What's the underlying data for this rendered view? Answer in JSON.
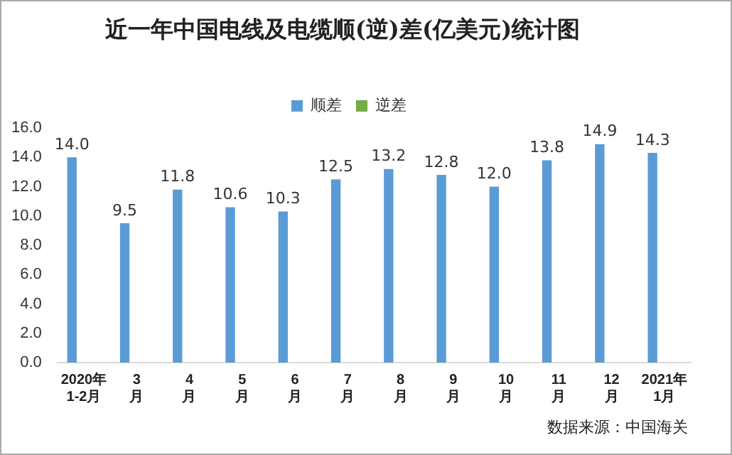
{
  "chart_data": {
    "type": "bar",
    "title": "近一年中国电线及电缆顺(逆)差(亿美元)统计图",
    "categories": [
      "2020年\n1-2月",
      "3\n月",
      "4\n月",
      "5\n月",
      "6\n月",
      "7\n月",
      "8\n月",
      "9\n月",
      "10\n月",
      "11\n月",
      "12\n月",
      "2021年\n1月"
    ],
    "series": [
      {
        "name": "顺差",
        "color": "#5b9bd5",
        "values": [
          14.0,
          9.5,
          11.8,
          10.6,
          10.3,
          12.5,
          13.2,
          12.8,
          12.0,
          13.8,
          14.9,
          14.3
        ],
        "value_labels": [
          "14.0",
          "9.5",
          "11.8",
          "10.6",
          "10.3",
          "12.5",
          "13.2",
          "12.8",
          "12.0",
          "13.8",
          "14.9",
          "14.3"
        ]
      },
      {
        "name": "逆差",
        "color": "#70ad47",
        "values": [
          null,
          null,
          null,
          null,
          null,
          null,
          null,
          null,
          null,
          null,
          null,
          null
        ]
      }
    ],
    "ylim": [
      0,
      16
    ],
    "yticks": [
      {
        "value": 0,
        "label": "0.0"
      },
      {
        "value": 2,
        "label": "2.0"
      },
      {
        "value": 4,
        "label": "4.0"
      },
      {
        "value": 6,
        "label": "6.0"
      },
      {
        "value": 8,
        "label": "8.0"
      },
      {
        "value": 10,
        "label": "10.0"
      },
      {
        "value": 12,
        "label": "12.0"
      },
      {
        "value": 14,
        "label": "14.0"
      },
      {
        "value": 16,
        "label": "16.0"
      }
    ],
    "grid": false,
    "legend": "top",
    "annotations": [
      "数据来源：中国海关"
    ]
  }
}
